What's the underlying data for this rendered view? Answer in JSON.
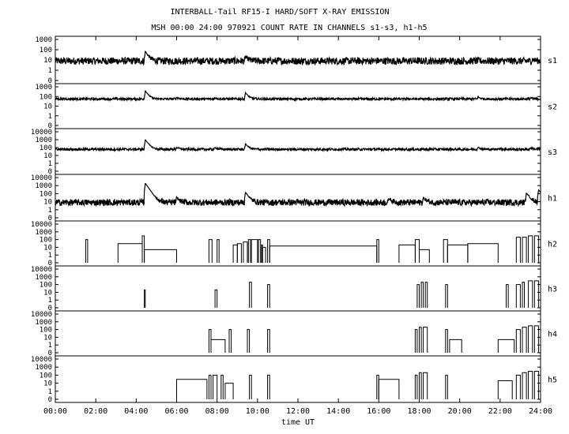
{
  "chart_data": {
    "type": "line",
    "title": "INTERBALL-Tail RF15-I HARD/SOFT X-RAY EMISSION",
    "subtitle": "MSH 00:00 24:00 970921  COUNT RATE IN CHANNELS s1-s3, h1-h5",
    "xlabel": "time UT",
    "x_ticks": [
      "00:00",
      "02:00",
      "04:00",
      "06:00",
      "08:00",
      "10:00",
      "12:00",
      "14:00",
      "16:00",
      "18:00",
      "20:00",
      "22:00",
      "24:00"
    ],
    "xlim": [
      0,
      24
    ],
    "y_scale": "log",
    "series": [
      {
        "name": "s1",
        "y_ticks": [
          "1000",
          "100",
          "10",
          "1",
          "0"
        ],
        "baseline": 8,
        "noise": 0.35,
        "peaks": [
          [
            4.45,
            70
          ],
          [
            9.4,
            20
          ],
          [
            23.6,
            12
          ]
        ],
        "bursts": []
      },
      {
        "name": "s2",
        "y_ticks": [
          "1000",
          "100",
          "10",
          "1",
          "0"
        ],
        "baseline": 55,
        "noise": 0.12,
        "peaks": [
          [
            4.45,
            400
          ],
          [
            6.0,
            80
          ],
          [
            7.9,
            75
          ],
          [
            9.4,
            250
          ],
          [
            20.9,
            90
          ],
          [
            23.5,
            70
          ]
        ],
        "bursts": []
      },
      {
        "name": "s3",
        "y_ticks": [
          "10000",
          "1000",
          "100",
          "10",
          "1",
          "0"
        ],
        "baseline": 60,
        "noise": 0.15,
        "peaks": [
          [
            4.45,
            1000
          ],
          [
            6.0,
            110
          ],
          [
            7.9,
            100
          ],
          [
            9.4,
            300
          ],
          [
            20.9,
            110
          ],
          [
            21.9,
            80
          ],
          [
            23.5,
            90
          ]
        ],
        "bursts": []
      },
      {
        "name": "h1",
        "y_ticks": [
          "10000",
          "1000",
          "100",
          "10",
          "1",
          "0"
        ],
        "baseline": 8,
        "noise": 0.4,
        "peaks": [
          [
            4.45,
            2000
          ],
          [
            6.0,
            30
          ],
          [
            9.4,
            150
          ],
          [
            16.5,
            25
          ],
          [
            18.2,
            30
          ],
          [
            23.3,
            120
          ],
          [
            23.9,
            300
          ]
        ],
        "bursts": []
      },
      {
        "name": "h2",
        "y_ticks": [
          "10000",
          "1000",
          "100",
          "10",
          "1",
          "0"
        ],
        "baseline": 0,
        "noise": 0,
        "peaks": [],
        "bursts": [
          [
            1.5,
            1.6,
            100
          ],
          [
            3.1,
            4.3,
            30
          ],
          [
            4.3,
            4.4,
            300
          ],
          [
            4.4,
            6.0,
            5
          ],
          [
            7.6,
            7.75,
            100
          ],
          [
            8.0,
            8.1,
            100
          ],
          [
            8.8,
            9.0,
            20
          ],
          [
            9.0,
            9.2,
            30
          ],
          [
            9.3,
            9.5,
            50
          ],
          [
            9.55,
            9.65,
            100
          ],
          [
            9.7,
            10.0,
            100
          ],
          [
            10.05,
            10.15,
            100
          ],
          [
            10.2,
            10.25,
            20
          ],
          [
            10.25,
            10.4,
            10
          ],
          [
            10.5,
            10.6,
            100
          ],
          [
            10.6,
            15.9,
            15
          ],
          [
            15.9,
            16.0,
            100
          ],
          [
            17.0,
            17.8,
            20
          ],
          [
            17.8,
            18.0,
            100
          ],
          [
            18.0,
            18.5,
            5
          ],
          [
            19.2,
            19.4,
            100
          ],
          [
            19.4,
            20.4,
            20
          ],
          [
            20.4,
            21.9,
            30
          ],
          [
            22.8,
            23.0,
            200
          ],
          [
            23.1,
            23.3,
            200
          ],
          [
            23.4,
            23.6,
            300
          ],
          [
            23.7,
            23.9,
            300
          ]
        ]
      },
      {
        "name": "h3",
        "y_ticks": [
          "10000",
          "1000",
          "100",
          "10",
          "1",
          "0"
        ],
        "baseline": 0,
        "noise": 0,
        "peaks": [],
        "bursts": [
          [
            4.4,
            4.45,
            20
          ],
          [
            7.9,
            8.0,
            20
          ],
          [
            9.6,
            9.7,
            200
          ],
          [
            10.5,
            10.6,
            100
          ],
          [
            17.9,
            18.0,
            100
          ],
          [
            18.1,
            18.2,
            200
          ],
          [
            18.3,
            18.4,
            200
          ],
          [
            19.3,
            19.4,
            100
          ],
          [
            22.3,
            22.4,
            100
          ],
          [
            22.8,
            23.0,
            100
          ],
          [
            23.1,
            23.2,
            200
          ],
          [
            23.4,
            23.6,
            300
          ],
          [
            23.7,
            23.9,
            300
          ]
        ]
      },
      {
        "name": "h4",
        "y_ticks": [
          "10000",
          "1000",
          "100",
          "10",
          "1",
          "0"
        ],
        "baseline": 0,
        "noise": 0,
        "peaks": [],
        "bursts": [
          [
            7.6,
            7.7,
            100
          ],
          [
            7.7,
            8.4,
            5
          ],
          [
            8.6,
            8.7,
            100
          ],
          [
            9.5,
            9.6,
            100
          ],
          [
            10.5,
            10.6,
            100
          ],
          [
            17.8,
            17.9,
            100
          ],
          [
            18.0,
            18.1,
            200
          ],
          [
            18.2,
            18.4,
            200
          ],
          [
            19.3,
            19.4,
            100
          ],
          [
            19.5,
            20.1,
            5
          ],
          [
            21.9,
            22.7,
            5
          ],
          [
            22.8,
            23.0,
            100
          ],
          [
            23.1,
            23.3,
            200
          ],
          [
            23.4,
            23.6,
            300
          ],
          [
            23.7,
            23.9,
            300
          ]
        ]
      },
      {
        "name": "h5",
        "y_ticks": [
          "10000",
          "1000",
          "100",
          "10",
          "1",
          "0"
        ],
        "baseline": 0,
        "noise": 0,
        "peaks": [],
        "bursts": [
          [
            6.0,
            7.5,
            30
          ],
          [
            7.6,
            7.7,
            100
          ],
          [
            7.8,
            8.0,
            100
          ],
          [
            8.2,
            8.3,
            100
          ],
          [
            8.4,
            8.8,
            10
          ],
          [
            9.6,
            9.7,
            100
          ],
          [
            10.5,
            10.6,
            100
          ],
          [
            15.9,
            16.0,
            100
          ],
          [
            16.0,
            17.0,
            30
          ],
          [
            17.8,
            17.9,
            100
          ],
          [
            18.0,
            18.1,
            200
          ],
          [
            18.2,
            18.4,
            200
          ],
          [
            19.3,
            19.4,
            100
          ],
          [
            21.9,
            22.6,
            20
          ],
          [
            22.8,
            23.0,
            100
          ],
          [
            23.1,
            23.3,
            200
          ],
          [
            23.4,
            23.6,
            300
          ],
          [
            23.7,
            23.9,
            300
          ]
        ]
      }
    ]
  }
}
